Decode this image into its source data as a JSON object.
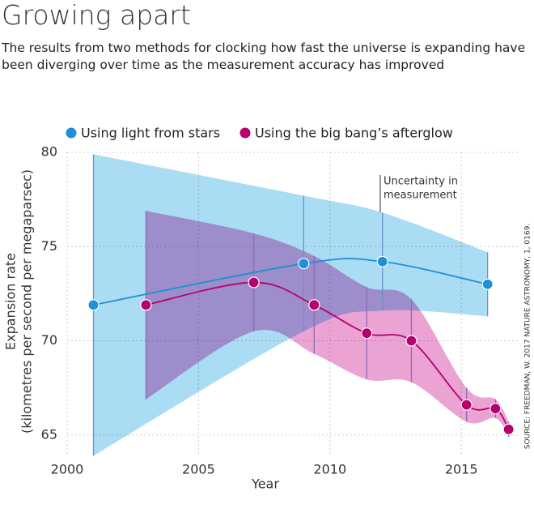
{
  "chart_data": {
    "type": "line",
    "title": "Growing apart",
    "subtitle": [
      "The results from two methods for clocking how fast the universe is expanding have",
      "been diverging over time as the measurement accuracy has improved"
    ],
    "xlabel": "Year",
    "ylabel": [
      "Expansion rate",
      "(kilometres per second per megaparsec)"
    ],
    "xlim": [
      2000,
      2017.15
    ],
    "ylim": [
      64,
      80
    ],
    "xticks": [
      2000,
      2005,
      2010,
      2015
    ],
    "yticks": [
      65,
      70,
      75,
      80
    ],
    "grid": true,
    "series": [
      {
        "name": "Using light from stars",
        "color": "#1f8fd6",
        "band_color": "#aadcf3",
        "error_color": "#6f8fc8",
        "x": [
          2001,
          2009,
          2012,
          2016
        ],
        "values": [
          71.9,
          74.1,
          74.2,
          73.0
        ],
        "errors": [
          8.0,
          3.6,
          2.6,
          1.7
        ]
      },
      {
        "name": "Using the big bang’s afterglow",
        "color": "#b5006e",
        "band_color": "#eba3d4",
        "error_color": "#8a6ab4",
        "x": [
          2003,
          2007.1,
          2009.4,
          2011.4,
          2013.1,
          2015.2,
          2016.3,
          2016.8
        ],
        "values": [
          71.9,
          73.1,
          71.9,
          70.4,
          70.0,
          66.6,
          66.4,
          65.3
        ],
        "errors": [
          5.0,
          2.6,
          2.6,
          2.45,
          2.2,
          0.9,
          0.5,
          0.4
        ]
      }
    ],
    "annotation": [
      "Uncertainty in",
      "measurement"
    ],
    "source": "SOURCE: FREEDMAN, W. 2017 NATURE ASTRONOMY, 1, 0169."
  }
}
